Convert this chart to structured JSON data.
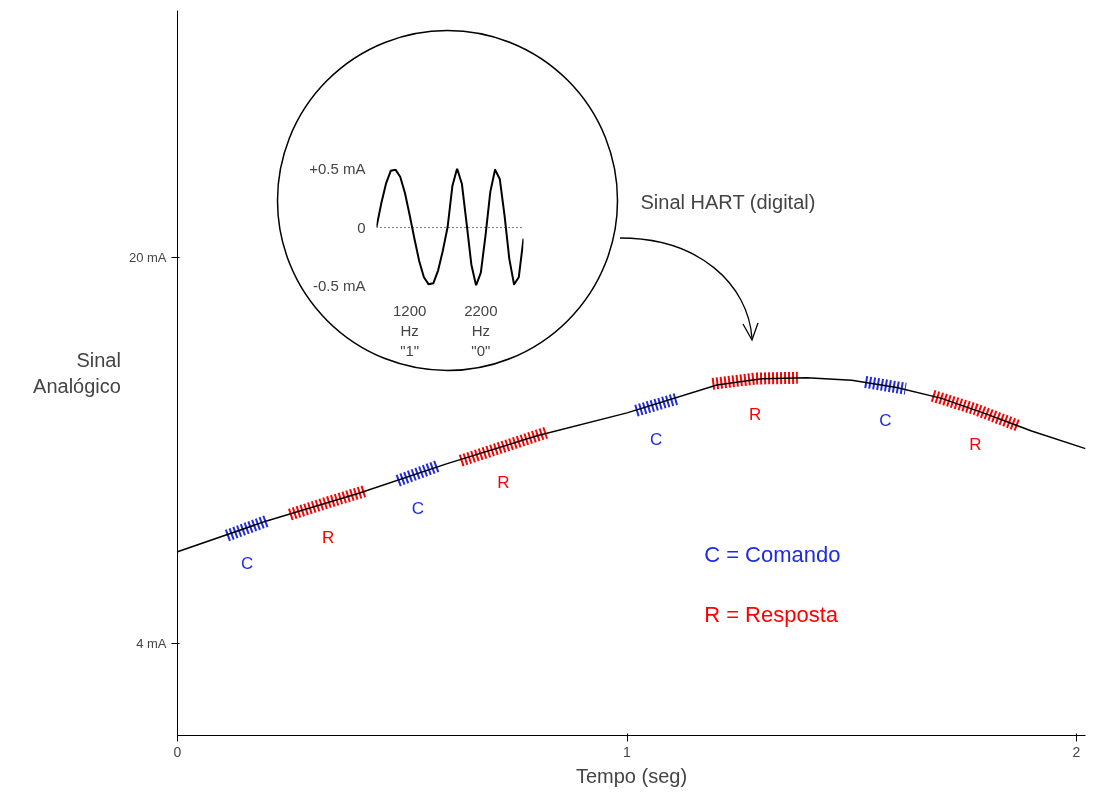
{
  "chart_data": [
    {
      "type": "line",
      "xlabel": "Tempo (seg)",
      "ylabel": "Sinal Analógico",
      "xlim": [
        0,
        2.02
      ],
      "ylim": [
        0.2,
        30.2
      ],
      "xticks": [
        0,
        1,
        2
      ],
      "yticks": [
        {
          "value": 4,
          "label": "4 mA"
        },
        {
          "value": 20,
          "label": "20 mA"
        }
      ],
      "grid": false,
      "legend": "bottom right",
      "series": [
        {
          "color": "#000000",
          "x": [
            0,
            0.2,
            0.4,
            0.6,
            0.8,
            1.0,
            1.2,
            1.3,
            1.4,
            1.5,
            1.6,
            1.7,
            1.8,
            1.9,
            2.02
          ],
          "values": [
            7.8,
            9.09,
            10.2,
            11.45,
            12.6,
            13.55,
            14.7,
            14.96,
            15.0,
            14.9,
            14.6,
            14.15,
            13.5,
            12.8,
            12.07
          ]
        },
        {
          "name": "C = Comando",
          "color": "#1e2be0",
          "line_style": "dashed",
          "x": [
            0.11,
            0.2,
            0.35,
            0.49,
            0.58,
            0.8,
            1.02,
            1.11,
            1.3,
            1.53,
            1.62
          ],
          "values": [
            8.47,
            9.09,
            null,
            10.74,
            11.36,
            null,
            13.64,
            14.13,
            null,
            14.83,
            14.55
          ]
        },
        {
          "name": "R = Resposta",
          "color": "#ff0000",
          "line_style": "dashed",
          "x": [
            0.25,
            0.335,
            0.42,
            0.5,
            0.63,
            0.725,
            0.82,
            1.0,
            1.19,
            1.285,
            1.38,
            1.5,
            1.68,
            1.775,
            1.87
          ],
          "values": [
            9.34,
            9.85,
            10.33,
            null,
            11.57,
            12.15,
            12.73,
            null,
            14.75,
            14.97,
            15.0,
            null,
            14.26,
            13.7,
            13.02
          ]
        }
      ],
      "annotations": [
        "Sinal HART (digital)",
        {
          "text": "C",
          "x": 0.155,
          "y": 8.78
        },
        {
          "text": "R",
          "x": 0.335,
          "y": 9.85
        },
        {
          "text": "C",
          "x": 0.535,
          "y": 11.05
        },
        {
          "text": "R",
          "x": 0.725,
          "y": 12.15
        },
        {
          "text": "C",
          "x": 1.065,
          "y": 13.9
        },
        {
          "text": "R",
          "x": 1.285,
          "y": 14.97
        },
        {
          "text": "C",
          "x": 1.575,
          "y": 14.7
        },
        {
          "text": "R",
          "x": 1.775,
          "y": 13.7
        }
      ]
    },
    {
      "type": "line",
      "ylim": [
        -0.5,
        0.5
      ],
      "categories": [
        null,
        null,
        null,
        null,
        null,
        null,
        null,
        "1200\nHz\n\"1\"",
        null,
        null,
        null,
        null,
        null,
        null,
        null,
        null,
        null,
        null,
        null,
        null,
        null,
        null,
        "2200\nHz\n\"0\"",
        null,
        null,
        null,
        null,
        null,
        null,
        null,
        null,
        null
      ],
      "yticks": [
        {
          "value": -0.5,
          "label": "-0.5 mA"
        },
        0,
        {
          "value": 0.5,
          "label": "+0.5 mA"
        }
      ],
      "grid": "y",
      "series": [
        {
          "color": "#000000",
          "values": [
            0,
            0.2,
            0.37,
            0.48,
            0.49,
            0.43,
            0.29,
            0.1,
            -0.1,
            -0.29,
            -0.43,
            -0.49,
            -0.48,
            -0.37,
            -0.2,
            0,
            0.35,
            0.5,
            0.37,
            0.03,
            -0.32,
            -0.5,
            -0.39,
            -0.07,
            0.3,
            0.49,
            0.41,
            0.1,
            -0.27,
            -0.49,
            -0.43,
            -0.1
          ]
        }
      ]
    }
  ]
}
